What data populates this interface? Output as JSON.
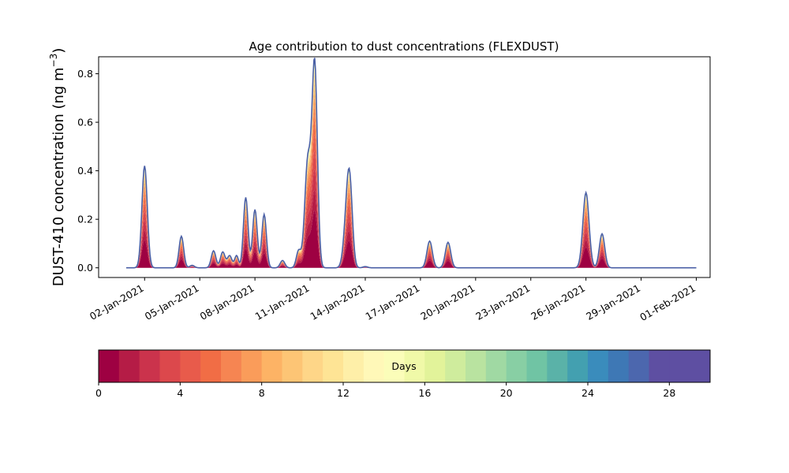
{
  "chart_data": {
    "type": "area",
    "title": "Age contribution to dust concentrations (FLEXDUST)",
    "ylabel_main": "DUST-410 concentration (ng m",
    "ylabel_unit_exp": "−3",
    "ylabel_close": ")",
    "xlabel": "",
    "ylim": [
      -0.04,
      0.87
    ],
    "y_ticks": [
      0.0,
      0.2,
      0.4,
      0.6,
      0.8
    ],
    "y_tick_labels": [
      "0.0",
      "0.2",
      "0.4",
      "0.6",
      "0.8"
    ],
    "x_ticks": [
      "2021-01-02",
      "2021-01-05",
      "2021-01-08",
      "2021-01-11",
      "2021-01-14",
      "2021-01-17",
      "2021-01-20",
      "2021-01-23",
      "2021-01-26",
      "2021-01-29",
      "2021-02-01"
    ],
    "x_tick_labels": [
      "02-Jan-2021",
      "05-Jan-2021",
      "08-Jan-2021",
      "11-Jan-2021",
      "14-Jan-2021",
      "17-Jan-2021",
      "20-Jan-2021",
      "23-Jan-2021",
      "26-Jan-2021",
      "29-Jan-2021",
      "01-Feb-2021"
    ],
    "x_start": "2021-01-01",
    "x_end": "2021-02-01",
    "xlim": [
      "2020-12-30T12:00",
      "2021-02-01T18:00"
    ],
    "peaks": [
      {
        "x": "2021-01-02T00:00",
        "total": 0.42,
        "width_hours": 3.5
      },
      {
        "x": "2021-01-04T00:00",
        "total": 0.13,
        "width_hours": 3
      },
      {
        "x": "2021-01-04T14:00",
        "total": 0.01,
        "width_hours": 3
      },
      {
        "x": "2021-01-05T18:00",
        "total": 0.07,
        "width_hours": 3
      },
      {
        "x": "2021-01-06T06:00",
        "total": 0.065,
        "width_hours": 3
      },
      {
        "x": "2021-01-06T15:00",
        "total": 0.05,
        "width_hours": 3
      },
      {
        "x": "2021-01-07T00:00",
        "total": 0.05,
        "width_hours": 2.5
      },
      {
        "x": "2021-01-07T12:00",
        "total": 0.29,
        "width_hours": 3
      },
      {
        "x": "2021-01-08T00:00",
        "total": 0.24,
        "width_hours": 3
      },
      {
        "x": "2021-01-08T12:00",
        "total": 0.22,
        "width_hours": 3
      },
      {
        "x": "2021-01-09T12:00",
        "total": 0.03,
        "width_hours": 3
      },
      {
        "x": "2021-01-10T09:00",
        "total": 0.07,
        "width_hours": 3
      },
      {
        "x": "2021-01-10T21:00",
        "total": 0.44,
        "width_hours": 4
      },
      {
        "x": "2021-01-11T06:00",
        "total": 0.83,
        "width_hours": 3.5
      },
      {
        "x": "2021-01-13T00:00",
        "total": 0.2,
        "width_hours": 4
      },
      {
        "x": "2021-01-13T04:00",
        "total": 0.27,
        "width_hours": 3.5
      },
      {
        "x": "2021-01-14T00:00",
        "total": 0.005,
        "width_hours": 3
      },
      {
        "x": "2021-01-17T12:00",
        "total": 0.11,
        "width_hours": 3.5
      },
      {
        "x": "2021-01-18T12:00",
        "total": 0.105,
        "width_hours": 3.5
      },
      {
        "x": "2021-01-26T00:00",
        "total": 0.31,
        "width_hours": 4
      },
      {
        "x": "2021-01-26T21:00",
        "total": 0.14,
        "width_hours": 3.5
      }
    ],
    "age_fractions_note_free": [
      0.28,
      0.1,
      0.1,
      0.09,
      0.08,
      0.07,
      0.06,
      0.05,
      0.04,
      0.03,
      0.025,
      0.02,
      0.015,
      0.01,
      0.008,
      0.006,
      0.005,
      0.005,
      0.004,
      0.004,
      0.003,
      0.003,
      0.003,
      0.002,
      0.002,
      0.002,
      0.002,
      0.002,
      0.002,
      0.002
    ],
    "colorbar": {
      "label": "Days",
      "min": 0,
      "max": 30,
      "ticks": [
        0,
        4,
        8,
        12,
        16,
        20,
        24,
        28
      ],
      "tick_labels": [
        "0",
        "4",
        "8",
        "12",
        "16",
        "20",
        "24",
        "28"
      ],
      "colors": [
        "#9e0142",
        "#b51c46",
        "#cb334c",
        "#dc484c",
        "#e85b4b",
        "#f16d45",
        "#f68552",
        "#fa9c5a",
        "#fdb365",
        "#fdc575",
        "#fed688",
        "#fee495",
        "#feefa8",
        "#fff8b8",
        "#fbfdb9",
        "#f0f9a8",
        "#e2f39a",
        "#cfec9d",
        "#b9e3a0",
        "#a0d9a3",
        "#88cfa4",
        "#70c4a4",
        "#5ab2a8",
        "#43a0b0",
        "#3a8cbc",
        "#3e78b5",
        "#4c67ae",
        "#5e4fa2",
        "#5e4fa2",
        "#5e4fa2"
      ]
    },
    "series_outline_color": "#4a5fa6",
    "baseline_color": "#5e4fa2"
  }
}
